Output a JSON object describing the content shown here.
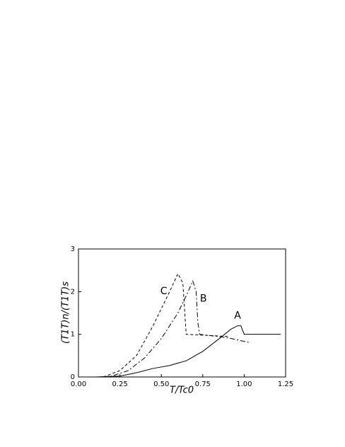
{
  "chart_data": {
    "type": "line",
    "xlabel": "T/Tc0",
    "ylabel": "(T1T)n/(T1T)s",
    "xlim": [
      0,
      1.25
    ],
    "ylim": [
      0,
      3
    ],
    "xticks": [
      {
        "value": 0,
        "label": "0.00"
      },
      {
        "value": 0.25,
        "label": "0.25"
      },
      {
        "value": 0.5,
        "label": "0.50"
      },
      {
        "value": 0.75,
        "label": "0.75"
      },
      {
        "value": 1,
        "label": "1.00"
      },
      {
        "value": 1.25,
        "label": "1.25"
      }
    ],
    "yticks": [
      0,
      1,
      2,
      3
    ],
    "series": [
      {
        "name": "A",
        "color": "#000000",
        "style": "solid",
        "x": [
          0.1,
          0.25,
          0.35,
          0.45,
          0.55,
          0.65,
          0.75,
          0.85,
          0.92,
          0.96,
          0.98,
          0.99,
          1.0,
          1.05,
          1.22
        ],
        "values": [
          0,
          0.02,
          0.1,
          0.2,
          0.27,
          0.38,
          0.6,
          0.9,
          1.12,
          1.2,
          1.2,
          1.1,
          1.0,
          1.0,
          1.0
        ]
      },
      {
        "name": "B",
        "color": "#000000",
        "style": "dashdot",
        "x": [
          0.15,
          0.2,
          0.3,
          0.4,
          0.5,
          0.6,
          0.65,
          0.69,
          0.71,
          0.72,
          0.73,
          0.9,
          1.04
        ],
        "values": [
          0,
          0.02,
          0.15,
          0.45,
          0.9,
          1.5,
          1.9,
          2.25,
          2.0,
          1.3,
          1.0,
          0.92,
          0.8
        ]
      },
      {
        "name": "C",
        "color": "#000000",
        "style": "dashed",
        "x": [
          0.15,
          0.25,
          0.35,
          0.45,
          0.55,
          0.6,
          0.63,
          0.65,
          0.75,
          0.9
        ],
        "values": [
          0,
          0.15,
          0.5,
          1.2,
          2.0,
          2.42,
          2.2,
          1.0,
          0.98,
          0.95
        ]
      }
    ]
  }
}
